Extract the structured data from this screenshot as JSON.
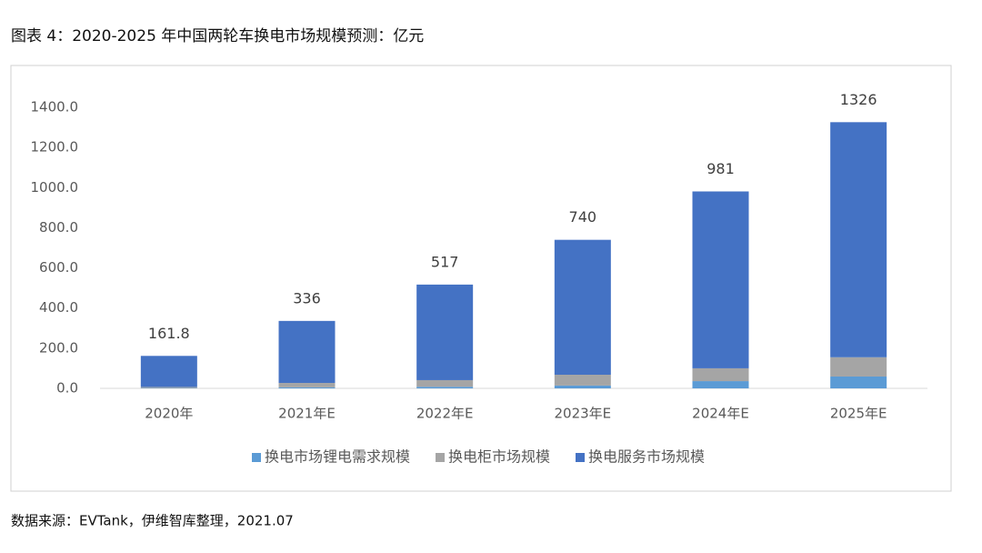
{
  "chart_data": {
    "type": "stacked_bar",
    "title": "图表 4：2020-2025 年中国两轮车换电市场规模预测：亿元",
    "source": "数据来源：EVTank，伊维智库整理，2021.07",
    "categories": [
      "2020年",
      "2021年E",
      "2022年E",
      "2023年E",
      "2024年E",
      "2025年E"
    ],
    "series": [
      {
        "name": "换电市场锂电需求规模",
        "color": "#5b9bd5",
        "values": [
          2,
          5,
          8,
          14,
          36,
          59
        ]
      },
      {
        "name": "换电柜市场规模",
        "color": "#a5a5a5",
        "values": [
          5,
          22,
          33,
          54,
          64,
          96
        ]
      },
      {
        "name": "换电服务市场规模",
        "color": "#4472c4",
        "values": [
          154.8,
          309,
          476,
          672,
          881,
          1171
        ]
      }
    ],
    "totals": [
      161.8,
      336,
      517,
      740,
      981,
      1326
    ],
    "ylim": [
      0,
      1400
    ],
    "yticks": [
      {
        "value": 0,
        "label": "0.0"
      },
      {
        "value": 200,
        "label": "200.0"
      },
      {
        "value": 400,
        "label": "400.0"
      },
      {
        "value": 600,
        "label": "600.0"
      },
      {
        "value": 800,
        "label": "800.0"
      },
      {
        "value": 1000,
        "label": "1000.0"
      },
      {
        "value": 1200,
        "label": "1200.0"
      },
      {
        "value": 1400,
        "label": "1400.0"
      }
    ],
    "legend": "bottom"
  }
}
